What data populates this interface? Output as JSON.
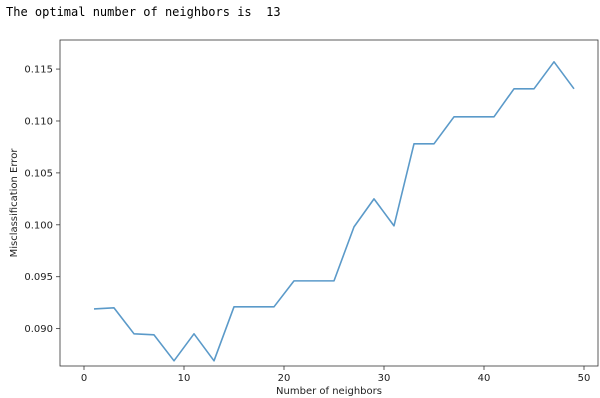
{
  "output": {
    "prefix": "The optimal number of neighbors is",
    "value": "13"
  },
  "chart_data": {
    "type": "line",
    "xlabel": "Number of neighbors",
    "ylabel": "Misclassification Error",
    "xlim": [
      -2.4,
      51.4
    ],
    "ylim": [
      0.0864,
      0.1178
    ],
    "xticks": [
      0,
      10,
      20,
      30,
      40,
      50
    ],
    "yticks": [
      0.09,
      0.095,
      0.1,
      0.105,
      0.11,
      0.115
    ],
    "ytick_labels": [
      "0.090",
      "0.095",
      "0.100",
      "0.105",
      "0.110",
      "0.115"
    ],
    "grid": false,
    "line_color": "#5b9ac9",
    "series": [
      {
        "x": [
          1,
          3,
          5,
          7,
          9,
          11,
          13,
          15,
          17,
          19,
          21,
          23,
          25,
          27,
          29,
          31,
          33,
          35,
          37,
          39,
          41,
          43,
          45,
          47,
          49
        ],
        "y": [
          0.0919,
          0.092,
          0.0895,
          0.0894,
          0.0869,
          0.0895,
          0.0869,
          0.0921,
          0.0921,
          0.0921,
          0.0946,
          0.0946,
          0.0946,
          0.0998,
          0.1025,
          0.0999,
          0.1078,
          0.1078,
          0.1104,
          0.1104,
          0.1104,
          0.1131,
          0.1131,
          0.1157,
          0.1131
        ]
      }
    ]
  }
}
